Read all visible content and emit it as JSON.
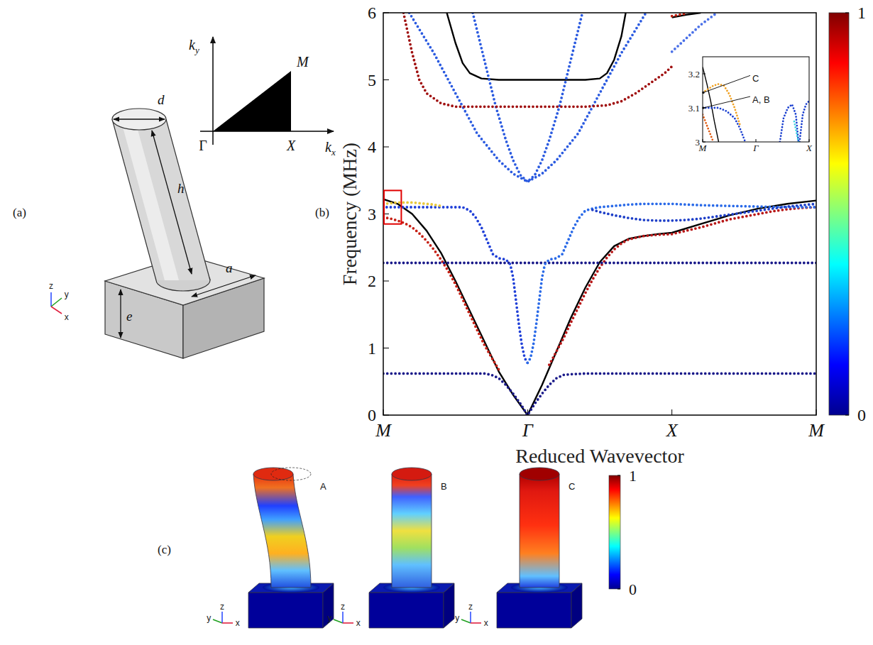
{
  "chart_data": [
    {
      "type": "line",
      "x_label": "Reduced Wavevector",
      "y_label": "Frequency (MHz)",
      "xlim": [
        0,
        3
      ],
      "ylim": [
        0,
        6
      ],
      "xticks": [
        {
          "value": 0,
          "label": "M"
        },
        {
          "value": 1,
          "label": "Γ"
        },
        {
          "value": 2,
          "label": "X"
        },
        {
          "value": 3,
          "label": "M"
        }
      ],
      "yticks": [
        0,
        1,
        2,
        3,
        4,
        5,
        6
      ],
      "colorbar": {
        "range": [
          0,
          1
        ],
        "ticks": [
          0,
          1
        ]
      },
      "zoom_region": {
        "x": [
          0,
          0.12
        ],
        "y": [
          2.85,
          3.35
        ]
      },
      "series": [
        {
          "type": "line",
          "line_style": "solid",
          "color": "#000000",
          "x": [
            0,
            0.1,
            0.2,
            0.3,
            0.4,
            0.5,
            0.6,
            0.7,
            0.8,
            0.9,
            1.0,
            1.1,
            1.2,
            1.3,
            1.4,
            1.5,
            1.6,
            1.7,
            1.8,
            1.9,
            2.0,
            2.2,
            2.4,
            2.6,
            2.8,
            3.0
          ],
          "values": [
            3.22,
            3.15,
            3.0,
            2.75,
            2.42,
            2.0,
            1.55,
            1.1,
            0.65,
            0.3,
            0,
            0.45,
            0.95,
            1.45,
            1.9,
            2.28,
            2.52,
            2.63,
            2.67,
            2.7,
            2.72,
            2.85,
            2.98,
            3.08,
            3.15,
            3.2
          ]
        },
        {
          "type": "line",
          "line_style": "solid",
          "color": "#000000",
          "x": [
            0.44,
            0.5,
            0.55,
            0.6,
            0.68,
            0.8,
            1.0,
            1.2,
            1.4,
            1.5,
            1.55,
            1.6,
            1.65,
            1.68,
            1.8,
            2.0,
            2.1,
            2.2
          ],
          "values": [
            6.0,
            5.55,
            5.25,
            5.1,
            5.02,
            5.0,
            5.0,
            5.0,
            5.0,
            5.02,
            5.1,
            5.3,
            5.65,
            6.0,
            null,
            5.93,
            5.97,
            6.0
          ]
        },
        {
          "type": "line",
          "line_style": "dotted",
          "color": "#1a1a8a",
          "x": [
            0,
            0.1,
            0.2,
            0.3,
            0.4,
            0.5,
            0.6,
            0.7,
            0.75,
            0.8,
            0.85,
            0.9,
            0.95,
            1.0,
            1.05,
            1.1,
            1.15,
            1.2,
            1.25,
            1.3,
            1.4,
            1.5,
            1.6,
            1.7,
            1.8,
            1.9,
            2.0,
            2.1,
            2.2,
            2.3,
            2.4,
            2.5,
            2.6,
            2.7,
            2.8,
            2.9,
            3.0
          ],
          "values": [
            0.62,
            0.62,
            0.62,
            0.62,
            0.62,
            0.62,
            0.62,
            0.62,
            0.6,
            0.55,
            0.45,
            0.32,
            0.17,
            0,
            0.17,
            0.32,
            0.45,
            0.55,
            0.6,
            0.61,
            0.62,
            0.62,
            0.62,
            0.62,
            0.62,
            0.62,
            0.62,
            0.62,
            0.62,
            0.62,
            0.62,
            0.62,
            0.62,
            0.62,
            0.62,
            0.62,
            0.62
          ]
        },
        {
          "type": "line",
          "line_style": "dotted",
          "color": "#c62015",
          "x": [
            0,
            0.05,
            0.1,
            0.15,
            0.2,
            0.25,
            0.3,
            0.35,
            0.4,
            0.45,
            0.5,
            0.55,
            0.6,
            0.65,
            0.7,
            0.75,
            0.8
          ],
          "values": [
            2.95,
            2.93,
            2.9,
            2.86,
            2.8,
            2.71,
            2.6,
            2.47,
            2.32,
            2.15,
            1.95,
            1.73,
            1.5,
            1.27,
            1.05,
            0.86,
            0.68
          ]
        },
        {
          "type": "line",
          "line_style": "dotted",
          "color": "#b81818",
          "x": [
            1.15,
            1.2,
            1.25,
            1.3,
            1.35,
            1.4,
            1.45,
            1.5,
            1.55,
            1.6,
            1.65,
            1.7,
            1.8,
            1.9,
            2.0,
            2.1,
            2.2,
            2.3,
            2.4,
            2.5,
            2.6,
            2.7,
            2.8,
            2.9,
            3.0
          ],
          "values": [
            0.75,
            0.95,
            1.15,
            1.38,
            1.6,
            1.82,
            2.02,
            2.2,
            2.35,
            2.47,
            2.56,
            2.62,
            2.67,
            2.69,
            2.7,
            2.75,
            2.8,
            2.86,
            2.92,
            2.96,
            3.0,
            3.04,
            3.07,
            3.09,
            3.1
          ]
        },
        {
          "type": "line",
          "line_style": "dotted",
          "color": "#1a1a8a",
          "x": [
            0,
            0.1,
            0.2,
            0.3,
            0.4,
            0.5,
            0.6,
            0.7,
            0.8,
            0.9,
            1.0,
            1.1,
            1.2,
            1.3,
            1.4,
            1.5,
            1.6,
            1.7,
            1.8,
            1.9,
            2.0,
            2.1,
            2.2,
            2.3,
            2.4,
            2.5,
            2.6,
            2.7,
            2.8,
            2.9,
            3.0
          ],
          "values": [
            2.27,
            2.27,
            2.27,
            2.27,
            2.27,
            2.27,
            2.27,
            2.27,
            2.27,
            2.27,
            2.27,
            2.27,
            2.27,
            2.27,
            2.27,
            2.27,
            2.27,
            2.27,
            2.27,
            2.27,
            2.27,
            2.27,
            2.27,
            2.27,
            2.27,
            2.27,
            2.27,
            2.27,
            2.27,
            2.27,
            2.27
          ]
        },
        {
          "type": "line",
          "line_style": "dotted",
          "color": "#2040d8",
          "x": [
            1.0,
            0.98,
            0.96,
            0.94,
            0.92,
            0.9,
            0.88,
            0.85,
            0.8,
            0.76,
            0.72,
            0.68,
            0.64,
            0.6,
            0.55,
            0.5,
            0.4,
            0.3,
            0.2,
            0.1,
            0
          ],
          "values": [
            0.78,
            0.85,
            1.05,
            1.35,
            1.7,
            2.05,
            2.25,
            2.32,
            2.34,
            2.4,
            2.6,
            2.8,
            2.95,
            3.05,
            3.1,
            3.1,
            3.1,
            3.1,
            3.1,
            3.1,
            3.1
          ]
        },
        {
          "type": "line",
          "line_style": "dotted",
          "color": "#2a6ae8",
          "x": [
            1.0,
            1.02,
            1.04,
            1.06,
            1.08,
            1.1,
            1.12,
            1.15,
            1.2,
            1.24,
            1.28,
            1.32,
            1.36,
            1.4,
            1.45,
            1.5,
            1.6,
            1.7,
            1.8,
            1.9,
            2.0,
            2.2,
            2.4,
            2.6,
            2.8,
            3.0
          ],
          "values": [
            0.78,
            0.85,
            1.05,
            1.35,
            1.7,
            2.05,
            2.25,
            2.32,
            2.34,
            2.4,
            2.6,
            2.8,
            2.95,
            3.05,
            3.08,
            3.1,
            3.12,
            3.14,
            3.15,
            3.15,
            3.15,
            3.13,
            3.12,
            3.11,
            3.1,
            3.1
          ]
        },
        {
          "type": "line",
          "line_style": "dotted",
          "color": "#1e3fc8",
          "x": [
            1.45,
            1.5,
            1.6,
            1.7,
            1.8,
            1.9,
            2.0,
            2.1,
            2.2,
            2.3,
            2.4,
            2.5,
            2.6,
            2.7,
            2.8,
            2.9,
            3.0
          ],
          "values": [
            3.06,
            3.03,
            2.98,
            2.94,
            2.91,
            2.9,
            2.9,
            2.91,
            2.93,
            2.96,
            2.99,
            3.02,
            3.05,
            3.08,
            3.11,
            3.13,
            3.15
          ]
        },
        {
          "type": "line",
          "line_style": "dotted",
          "color": "#e8c83a",
          "x": [
            0,
            0.05,
            0.1,
            0.15,
            0.2,
            0.25,
            0.3,
            0.35,
            0.4
          ],
          "values": [
            3.15,
            3.16,
            3.17,
            3.17,
            3.17,
            3.16,
            3.15,
            3.14,
            3.12
          ]
        },
        {
          "type": "line",
          "line_style": "dotted",
          "color": "#2a5ae0",
          "x": [
            0.18,
            0.35,
            0.5,
            0.65,
            0.8,
            0.9,
            1.0,
            1.1,
            1.2,
            1.35,
            1.5,
            1.65,
            1.82
          ],
          "values": [
            6,
            5.4,
            4.8,
            4.2,
            3.8,
            3.6,
            3.48,
            3.6,
            3.8,
            4.2,
            4.8,
            5.4,
            6
          ]
        },
        {
          "type": "line",
          "line_style": "dotted",
          "color": "#2a5ae0",
          "x": [
            0.62,
            0.7,
            0.78,
            0.85,
            0.9,
            0.95,
            1.0,
            1.05,
            1.1,
            1.15,
            1.22,
            1.3,
            1.38
          ],
          "values": [
            6,
            5.3,
            4.6,
            4.1,
            3.8,
            3.58,
            3.48,
            3.58,
            3.8,
            4.1,
            4.6,
            5.3,
            6
          ]
        },
        {
          "type": "line",
          "line_style": "dotted",
          "color": "#a01010",
          "x": [
            0.14,
            0.2,
            0.25,
            0.3,
            0.4,
            0.5,
            0.6,
            0.8,
            1.0,
            1.2,
            1.4,
            1.55,
            1.65,
            1.75,
            1.85,
            1.95,
            2.0
          ],
          "values": [
            6,
            5.4,
            5.0,
            4.8,
            4.65,
            4.6,
            4.6,
            4.6,
            4.6,
            4.6,
            4.6,
            4.62,
            4.68,
            4.8,
            4.95,
            5.1,
            5.2
          ]
        },
        {
          "type": "line",
          "line_style": "dotted",
          "color": "#4a70e8",
          "x": [
            2.0,
            2.05,
            2.1,
            2.15,
            2.2,
            2.25,
            2.3
          ],
          "values": [
            5.42,
            5.52,
            5.62,
            5.72,
            5.82,
            5.9,
            5.98
          ]
        },
        {
          "type": "line",
          "line_style": "dotted",
          "color": "#c02010",
          "x": [
            2.0,
            2.05,
            2.1
          ],
          "values": [
            5.95,
            5.97,
            5.99
          ]
        }
      ]
    },
    {
      "type": "line",
      "xlim": [
        0,
        2
      ],
      "ylim": [
        3,
        3.25
      ],
      "xticks": [
        {
          "value": 0,
          "label": "M"
        },
        {
          "value": 1,
          "label": "Γ"
        },
        {
          "value": 2,
          "label": "X"
        }
      ],
      "yticks": [
        3,
        3.1,
        3.2
      ],
      "annotations": [
        {
          "text": "C",
          "x": 0,
          "y": 3.145
        },
        {
          "text": "A, B",
          "x": 0,
          "y": 3.1
        }
      ],
      "series": [
        {
          "type": "line",
          "line_style": "solid",
          "color": "#000000",
          "x": [
            0,
            0.08,
            0.15,
            0.22,
            0.3
          ],
          "values": [
            3.22,
            3.17,
            3.12,
            3.06,
            3.0
          ]
        },
        {
          "type": "line",
          "line_style": "dotted",
          "color": "#f0a020",
          "x": [
            0,
            0.1,
            0.2,
            0.3,
            0.4,
            0.5,
            0.6,
            0.7
          ],
          "values": [
            3.145,
            3.155,
            3.165,
            3.17,
            3.165,
            3.14,
            3.1,
            3.05
          ]
        },
        {
          "type": "line",
          "line_style": "dotted",
          "color": "#e05a10",
          "x": [
            0,
            0.05,
            0.1,
            0.15,
            0.2
          ],
          "values": [
            3.08,
            3.06,
            3.04,
            3.02,
            3.0
          ]
        },
        {
          "type": "line",
          "line_style": "dotted",
          "color": "#1a3fd0",
          "x": [
            0,
            0.15,
            0.3,
            0.45,
            0.6,
            0.7,
            0.8
          ],
          "values": [
            3.1,
            3.1,
            3.1,
            3.09,
            3.07,
            3.04,
            3.0
          ]
        },
        {
          "type": "line",
          "line_style": "dotted",
          "color": "#1a3fd0",
          "x": [
            1.45,
            1.52,
            1.6,
            1.68,
            1.75,
            1.8
          ],
          "values": [
            3.0,
            3.07,
            3.1,
            3.11,
            3.08,
            3.0
          ]
        },
        {
          "type": "line",
          "line_style": "dotted",
          "color": "#1a3fd0",
          "x": [
            1.82,
            1.88,
            1.94,
            2.0
          ],
          "values": [
            3.0,
            3.08,
            3.11,
            3.12
          ]
        },
        {
          "type": "line",
          "line_style": "dotted",
          "color": "#40d0e0",
          "x": [
            1.72,
            1.76,
            1.8
          ],
          "values": [
            3.06,
            3.03,
            3.0
          ]
        }
      ]
    }
  ],
  "panels": {
    "a": {
      "label": "(a)",
      "dimensions": [
        "d",
        "h",
        "e",
        "a"
      ],
      "reciprocal": {
        "k_x": {
          "base": "k",
          "sub": "x"
        },
        "k_y": {
          "base": "k",
          "sub": "y"
        },
        "points": [
          "Γ",
          "X",
          "M"
        ]
      },
      "triad": [
        "z",
        "y",
        "x"
      ]
    },
    "b": {
      "label": "(b)"
    },
    "c": {
      "label": "(c)",
      "modes": [
        "A",
        "B",
        "C"
      ],
      "colorbar": {
        "range": [
          0,
          1
        ],
        "ticks": [
          0,
          1
        ]
      },
      "triad": [
        "y",
        "z",
        "x"
      ]
    }
  }
}
